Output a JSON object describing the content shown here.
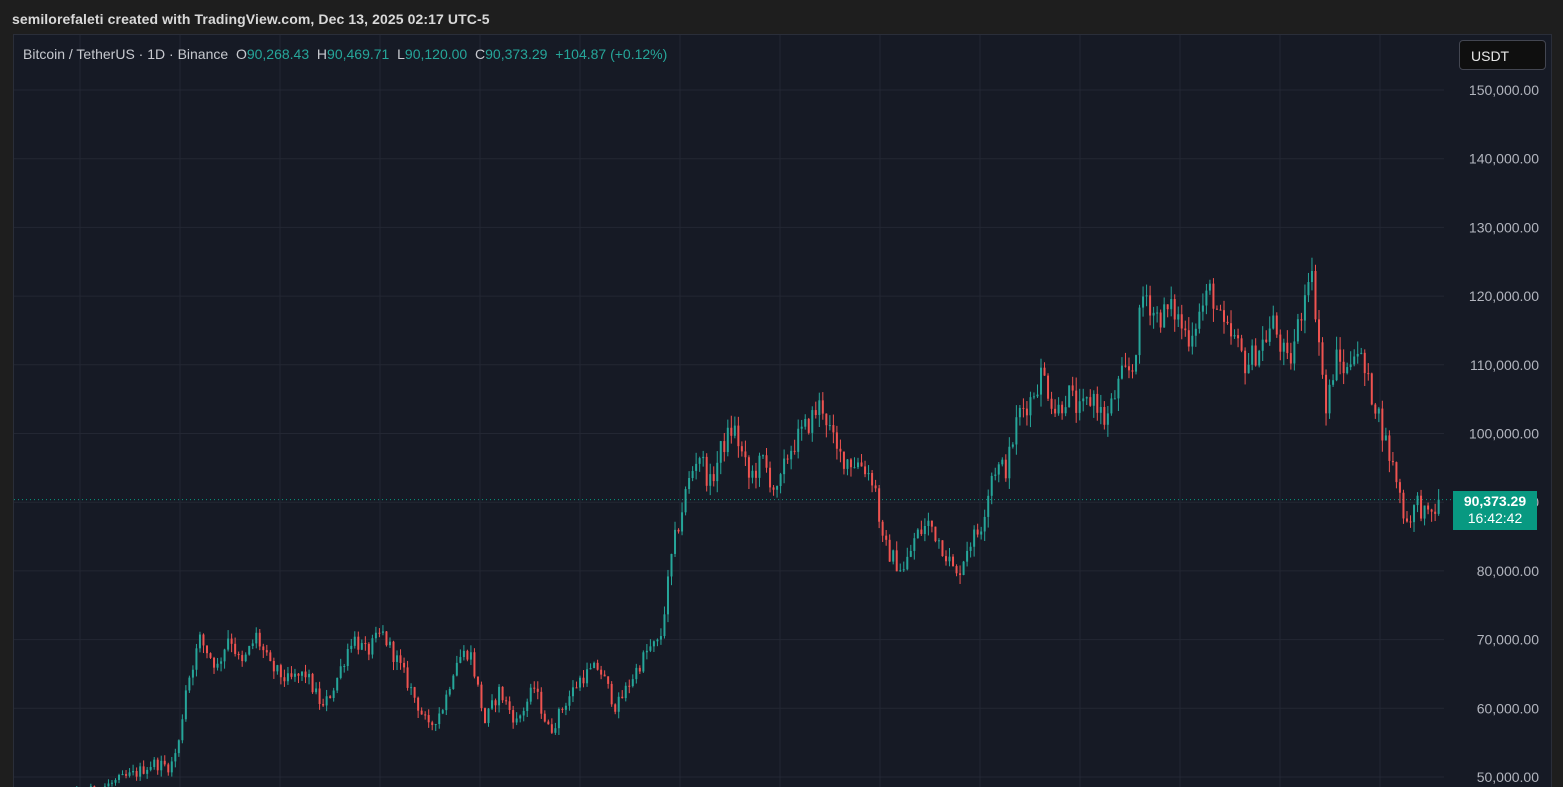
{
  "header": {
    "credit": "semilorefaleti created with TradingView.com, Dec 13, 2025 02:17 UTC-5"
  },
  "legend": {
    "symbol": "Bitcoin / TetherUS · 1D · Binance",
    "open_label": "O",
    "open": "90,268.43",
    "high_label": "H",
    "high": "90,469.71",
    "low_label": "L",
    "low": "90,120.00",
    "close_label": "C",
    "close": "90,373.29",
    "change": "+104.87 (+0.12%)"
  },
  "currency_button": "USDT",
  "last_price": {
    "price": "90,373.29",
    "countdown": "16:42:42",
    "value": 90373.29
  },
  "colors": {
    "up": "#26a69a",
    "down": "#ef5350",
    "background": "#161a25",
    "grid": "#232733",
    "price_tag": "#089981"
  },
  "chart_data": {
    "type": "candlestick",
    "interval": "1D",
    "ylim": [
      46000,
      157000
    ],
    "yticks": [
      50000,
      60000,
      70000,
      80000,
      90000,
      100000,
      110000,
      120000,
      130000,
      140000,
      150000
    ],
    "ytick_labels": [
      "50,000.00",
      "60,000.00",
      "70,000.00",
      "80,000.00",
      "90,000.00",
      "100,000.00",
      "110,000.00",
      "120,000.00",
      "130,000.00",
      "140,000.00",
      "150,000.00"
    ],
    "grid": true,
    "axis_position": "right",
    "close_path": [
      [
        0,
        46000
      ],
      [
        60,
        48000
      ],
      [
        95,
        50500
      ],
      [
        110,
        52000
      ],
      [
        125,
        51500
      ],
      [
        132,
        55000
      ],
      [
        138,
        63000
      ],
      [
        150,
        70000
      ],
      [
        165,
        66000
      ],
      [
        175,
        71000
      ],
      [
        185,
        66000
      ],
      [
        198,
        70500
      ],
      [
        210,
        66000
      ],
      [
        225,
        64000
      ],
      [
        240,
        65000
      ],
      [
        255,
        60000
      ],
      [
        265,
        63500
      ],
      [
        280,
        70500
      ],
      [
        292,
        68000
      ],
      [
        305,
        71000
      ],
      [
        318,
        67000
      ],
      [
        332,
        62000
      ],
      [
        345,
        57000
      ],
      [
        358,
        60500
      ],
      [
        368,
        67000
      ],
      [
        380,
        68500
      ],
      [
        393,
        58000
      ],
      [
        405,
        62500
      ],
      [
        420,
        58000
      ],
      [
        435,
        63000
      ],
      [
        448,
        56500
      ],
      [
        462,
        61000
      ],
      [
        475,
        64500
      ],
      [
        490,
        66000
      ],
      [
        505,
        60000
      ],
      [
        520,
        65000
      ],
      [
        532,
        68500
      ],
      [
        542,
        69500
      ],
      [
        553,
        83000
      ],
      [
        565,
        92000
      ],
      [
        575,
        97500
      ],
      [
        585,
        92500
      ],
      [
        595,
        98000
      ],
      [
        605,
        101000
      ],
      [
        618,
        93500
      ],
      [
        630,
        96000
      ],
      [
        642,
        91000
      ],
      [
        652,
        97500
      ],
      [
        665,
        100500
      ],
      [
        680,
        104500
      ],
      [
        693,
        97000
      ],
      [
        705,
        96000
      ],
      [
        715,
        95500
      ],
      [
        725,
        93000
      ],
      [
        732,
        84000
      ],
      [
        740,
        82000
      ],
      [
        750,
        80000
      ],
      [
        760,
        85000
      ],
      [
        772,
        87000
      ],
      [
        785,
        83000
      ],
      [
        795,
        79000
      ],
      [
        805,
        84000
      ],
      [
        815,
        86000
      ],
      [
        826,
        95000
      ],
      [
        838,
        95000
      ],
      [
        848,
        103000
      ],
      [
        858,
        105000
      ],
      [
        868,
        109000
      ],
      [
        880,
        103000
      ],
      [
        890,
        106000
      ],
      [
        900,
        103000
      ],
      [
        912,
        105500
      ],
      [
        922,
        101500
      ],
      [
        935,
        108000
      ],
      [
        945,
        109500
      ],
      [
        955,
        121000
      ],
      [
        965,
        117000
      ],
      [
        980,
        118000
      ],
      [
        992,
        114000
      ],
      [
        1002,
        117500
      ],
      [
        1012,
        121000
      ],
      [
        1022,
        115000
      ],
      [
        1032,
        113500
      ],
      [
        1042,
        110000
      ],
      [
        1055,
        113000
      ],
      [
        1065,
        116000
      ],
      [
        1078,
        109500
      ],
      [
        1088,
        117000
      ],
      [
        1096,
        125000
      ],
      [
        1102,
        117000
      ],
      [
        1110,
        103000
      ],
      [
        1118,
        111000
      ],
      [
        1128,
        109000
      ],
      [
        1135,
        113500
      ],
      [
        1145,
        107500
      ],
      [
        1153,
        104000
      ],
      [
        1162,
        98000
      ],
      [
        1170,
        93500
      ],
      [
        1178,
        87000
      ],
      [
        1188,
        90000
      ],
      [
        1197,
        87500
      ],
      [
        1208,
        90373.29
      ]
    ]
  }
}
